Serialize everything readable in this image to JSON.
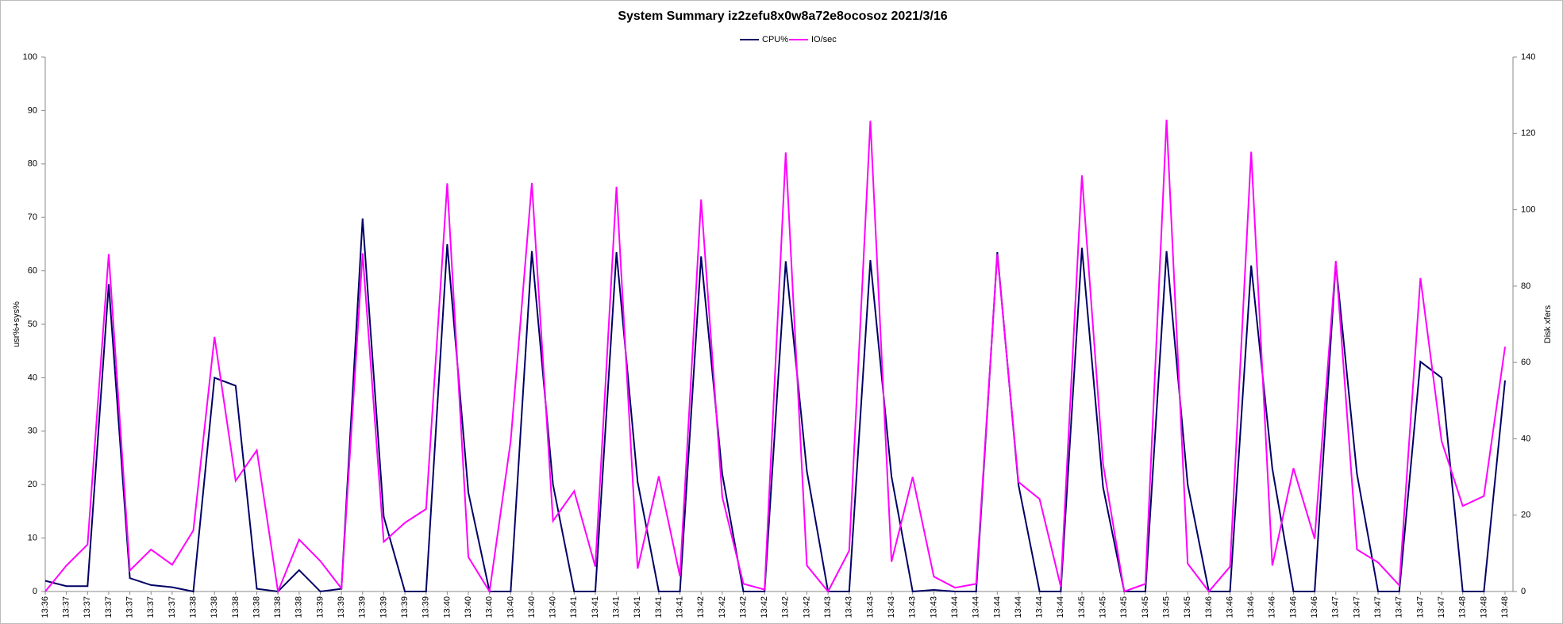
{
  "chart_data": {
    "type": "line",
    "title": "System Summary  iz2zefu8x0w8a72e8ocosoz  2021/3/16",
    "y_label": "usr%+sys%",
    "y2_label": "Disk xfers",
    "legend": "top",
    "grid": false,
    "categories": [
      "13:36",
      "13:37",
      "13:37",
      "13:37",
      "13:37",
      "13:37",
      "13:37",
      "13:38",
      "13:38",
      "13:38",
      "13:38",
      "13:38",
      "13:38",
      "13:39",
      "13:39",
      "13:39",
      "13:39",
      "13:39",
      "13:39",
      "13:40",
      "13:40",
      "13:40",
      "13:40",
      "13:40",
      "13:40",
      "13:41",
      "13:41",
      "13:41",
      "13:41",
      "13:41",
      "13:41",
      "13:42",
      "13:42",
      "13:42",
      "13:42",
      "13:42",
      "13:42",
      "13:43",
      "13:43",
      "13:43",
      "13:43",
      "13:43",
      "13:43",
      "13:44",
      "13:44",
      "13:44",
      "13:44",
      "13:44",
      "13:44",
      "13:45",
      "13:45",
      "13:45",
      "13:45",
      "13:45",
      "13:45",
      "13:46",
      "13:46",
      "13:46",
      "13:46",
      "13:46",
      "13:46",
      "13:47",
      "13:47",
      "13:47",
      "13:47",
      "13:47",
      "13:47",
      "13:48",
      "13:48",
      "13:48"
    ],
    "series": [
      {
        "name": "CPU%",
        "color": "#000066",
        "axis": "y",
        "values": [
          2,
          1,
          1,
          57.5,
          2.5,
          1.2,
          0.8,
          0,
          40,
          38.5,
          0.5,
          0,
          4,
          0,
          0.5,
          69.8,
          14,
          0,
          0,
          65,
          18.5,
          0,
          0,
          63.7,
          20,
          0,
          0,
          63.5,
          20.5,
          0,
          0,
          62.7,
          22,
          0,
          0,
          61.8,
          22.5,
          0,
          0,
          62,
          21.5,
          0,
          0.3,
          0,
          0,
          63.5,
          20,
          0,
          0,
          64.3,
          19.5,
          0,
          0,
          63.7,
          20,
          0,
          0,
          61,
          23,
          0,
          0,
          61.5,
          22,
          0,
          0,
          43,
          40,
          0,
          0,
          39.5
        ]
      },
      {
        "name": "IO/sec",
        "color": "#ff00ff",
        "axis": "y2",
        "values": [
          0,
          6.8,
          12.3,
          88.4,
          5.5,
          11,
          7,
          16,
          66.7,
          29,
          37,
          0,
          13.6,
          8,
          0.8,
          88.6,
          13,
          18,
          21.6,
          106.9,
          9,
          0,
          39.4,
          107,
          18.5,
          26.3,
          6.5,
          106,
          6,
          30.2,
          4,
          102.7,
          24.8,
          2,
          0.5,
          115,
          6.8,
          0,
          10.7,
          123.3,
          7.8,
          30,
          3.9,
          1,
          2,
          88.4,
          28.7,
          24.2,
          1.3,
          109,
          33.4,
          0,
          2,
          123.6,
          7.3,
          0,
          6.5,
          115.2,
          6.8,
          32.3,
          13.8,
          86.6,
          11,
          7.6,
          1.6,
          82.1,
          39.4,
          22.4,
          25,
          64.1
        ]
      }
    ],
    "ylim": [
      0,
      100
    ],
    "yticks": [
      0,
      10,
      20,
      30,
      40,
      50,
      60,
      70,
      80,
      90,
      100
    ],
    "y2lim": [
      0,
      140
    ],
    "y2ticks": [
      0,
      20,
      40,
      60,
      80,
      100,
      120,
      140
    ]
  }
}
